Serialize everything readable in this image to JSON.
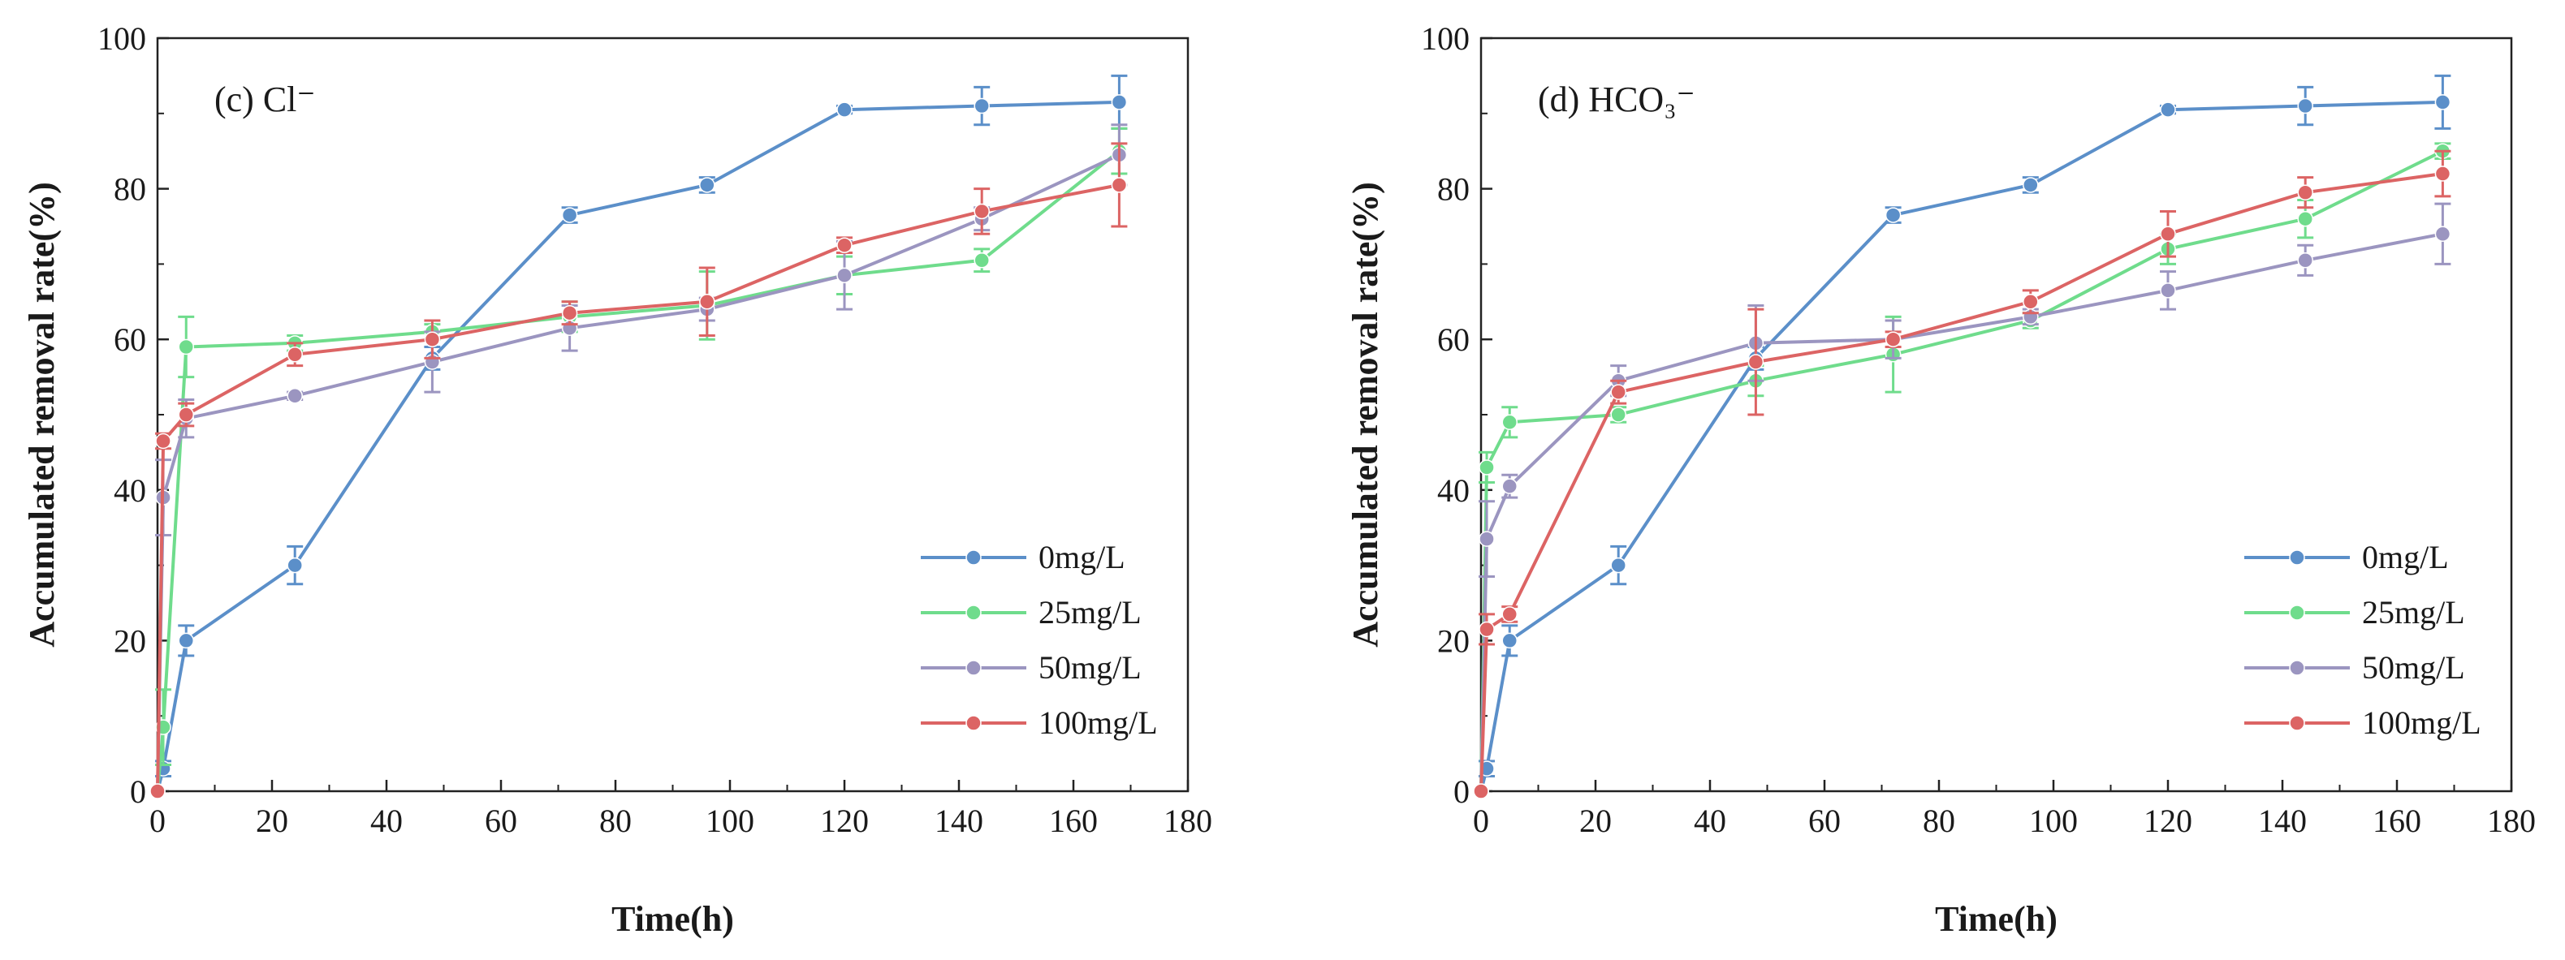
{
  "chart_data": [
    {
      "type": "line",
      "panel_label": "(c) Cl⁻",
      "title": "",
      "xlabel": "Time(h)",
      "ylabel": "Accumulated removal rate(%)",
      "xlim": [
        0,
        180
      ],
      "ylim": [
        0,
        100
      ],
      "xticks": [
        "0",
        "20",
        "40",
        "60",
        "80",
        "100",
        "120",
        "140",
        "160",
        "180"
      ],
      "yticks": [
        "0",
        "20",
        "40",
        "60",
        "80",
        "100"
      ],
      "grid": false,
      "legend_position": "bottom-right",
      "x": [
        0,
        1,
        5,
        24,
        48,
        72,
        96,
        120,
        144,
        168
      ],
      "series": [
        {
          "name": "0mg/L",
          "color": "#5b8fc9",
          "values": [
            0,
            3,
            20,
            30,
            57.5,
            76.5,
            80.5,
            90.5,
            91,
            91.5
          ],
          "errors": [
            0,
            1,
            2,
            2.5,
            1.5,
            1,
            1,
            0.5,
            2.5,
            3.5
          ]
        },
        {
          "name": "25mg/L",
          "color": "#6fdc8c",
          "values": [
            0,
            8.5,
            59,
            59.5,
            61,
            63,
            64.5,
            68.5,
            70.5,
            85
          ],
          "errors": [
            0,
            5,
            4,
            1,
            1,
            2,
            4.5,
            2.5,
            1.5,
            3
          ]
        },
        {
          "name": "50mg/L",
          "color": "#9b95c0",
          "values": [
            0,
            39,
            49.5,
            52.5,
            57,
            61.5,
            64,
            68.5,
            76,
            84.5
          ],
          "errors": [
            0,
            5,
            2.5,
            0.5,
            4,
            3,
            1.5,
            4.5,
            1.5,
            4
          ]
        },
        {
          "name": "100mg/L",
          "color": "#dc6464",
          "values": [
            0,
            46.5,
            50,
            58,
            60,
            63.5,
            65,
            72.5,
            77,
            80.5
          ],
          "errors": [
            0,
            1,
            1.5,
            1.5,
            2.5,
            1.5,
            4.5,
            1,
            3,
            5.5
          ]
        }
      ]
    },
    {
      "type": "line",
      "panel_label": "(d) HCO₃⁻",
      "title": "",
      "xlabel": "Time(h)",
      "ylabel": "Accumulated removal rate(%)",
      "xlim": [
        0,
        180
      ],
      "ylim": [
        0,
        100
      ],
      "xticks": [
        "0",
        "20",
        "40",
        "60",
        "80",
        "100",
        "120",
        "140",
        "160",
        "180"
      ],
      "yticks": [
        "0",
        "20",
        "40",
        "60",
        "80",
        "100"
      ],
      "grid": false,
      "legend_position": "bottom-right",
      "x": [
        0,
        1,
        5,
        24,
        48,
        72,
        96,
        120,
        144,
        168
      ],
      "series": [
        {
          "name": "0mg/L",
          "color": "#5b8fc9",
          "values": [
            0,
            3,
            20,
            30,
            57.5,
            76.5,
            80.5,
            90.5,
            91,
            91.5
          ],
          "errors": [
            0,
            1,
            2,
            2.5,
            1.5,
            1,
            1,
            0.5,
            2.5,
            3.5
          ]
        },
        {
          "name": "25mg/L",
          "color": "#6fdc8c",
          "values": [
            0,
            43,
            49,
            50,
            54.5,
            58,
            62.5,
            72,
            76,
            85
          ],
          "errors": [
            0,
            2,
            2,
            1,
            2,
            5,
            1,
            2,
            2.5,
            1
          ]
        },
        {
          "name": "50mg/L",
          "color": "#9b95c0",
          "values": [
            0,
            33.5,
            40.5,
            54.5,
            59.5,
            60,
            63,
            66.5,
            70.5,
            74
          ],
          "errors": [
            0,
            5,
            1.5,
            2,
            5,
            2.5,
            1,
            2.5,
            2,
            4
          ]
        },
        {
          "name": "100mg/L",
          "color": "#dc6464",
          "values": [
            0,
            21.5,
            23.5,
            53,
            57,
            60,
            65,
            74,
            79.5,
            82
          ],
          "errors": [
            0,
            2,
            1,
            1.5,
            7,
            1,
            1.5,
            3,
            2,
            3
          ]
        }
      ]
    }
  ]
}
